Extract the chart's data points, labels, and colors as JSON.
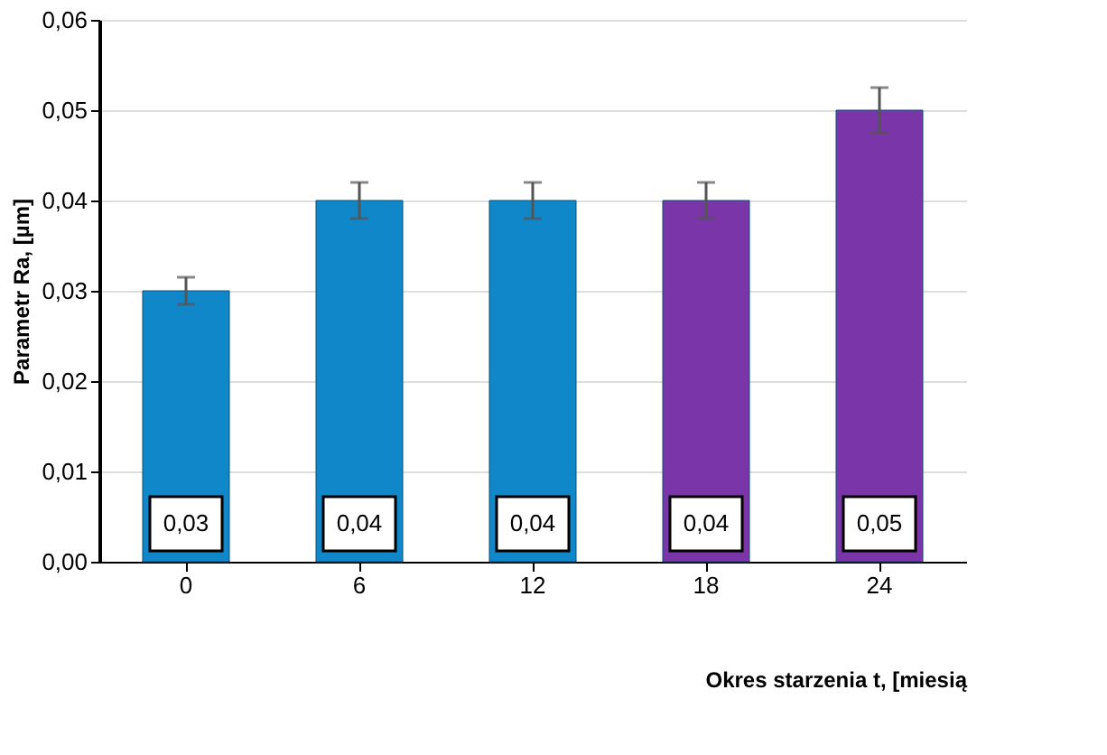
{
  "chart_data": {
    "type": "bar",
    "ylabel": "Parametr Ra, [µm]",
    "xlabel": "Okres starzenia t,  [miesią",
    "categories": [
      "0",
      "6",
      "12",
      "18",
      "24"
    ],
    "values": [
      0.03,
      0.04,
      0.04,
      0.04,
      0.05
    ],
    "colors": [
      "#1087c8",
      "#1087c8",
      "#1087c8",
      "#7a35a8",
      "#7a35a8"
    ],
    "errors": [
      0.0015,
      0.002,
      0.002,
      0.002,
      0.0025
    ],
    "value_labels": [
      "0,03",
      "0,04",
      "0,04",
      "0,04",
      "0,05"
    ],
    "ylim": [
      0,
      0.06
    ],
    "yticks": [
      {
        "value": 0,
        "label": "0,00"
      },
      {
        "value": 0.01,
        "label": "0,01"
      },
      {
        "value": 0.02,
        "label": "0,02"
      },
      {
        "value": 0.03,
        "label": "0,03"
      },
      {
        "value": 0.04,
        "label": "0,04"
      },
      {
        "value": 0.05,
        "label": "0,05"
      },
      {
        "value": 0.06,
        "label": "0,06"
      }
    ],
    "grid": "y"
  }
}
